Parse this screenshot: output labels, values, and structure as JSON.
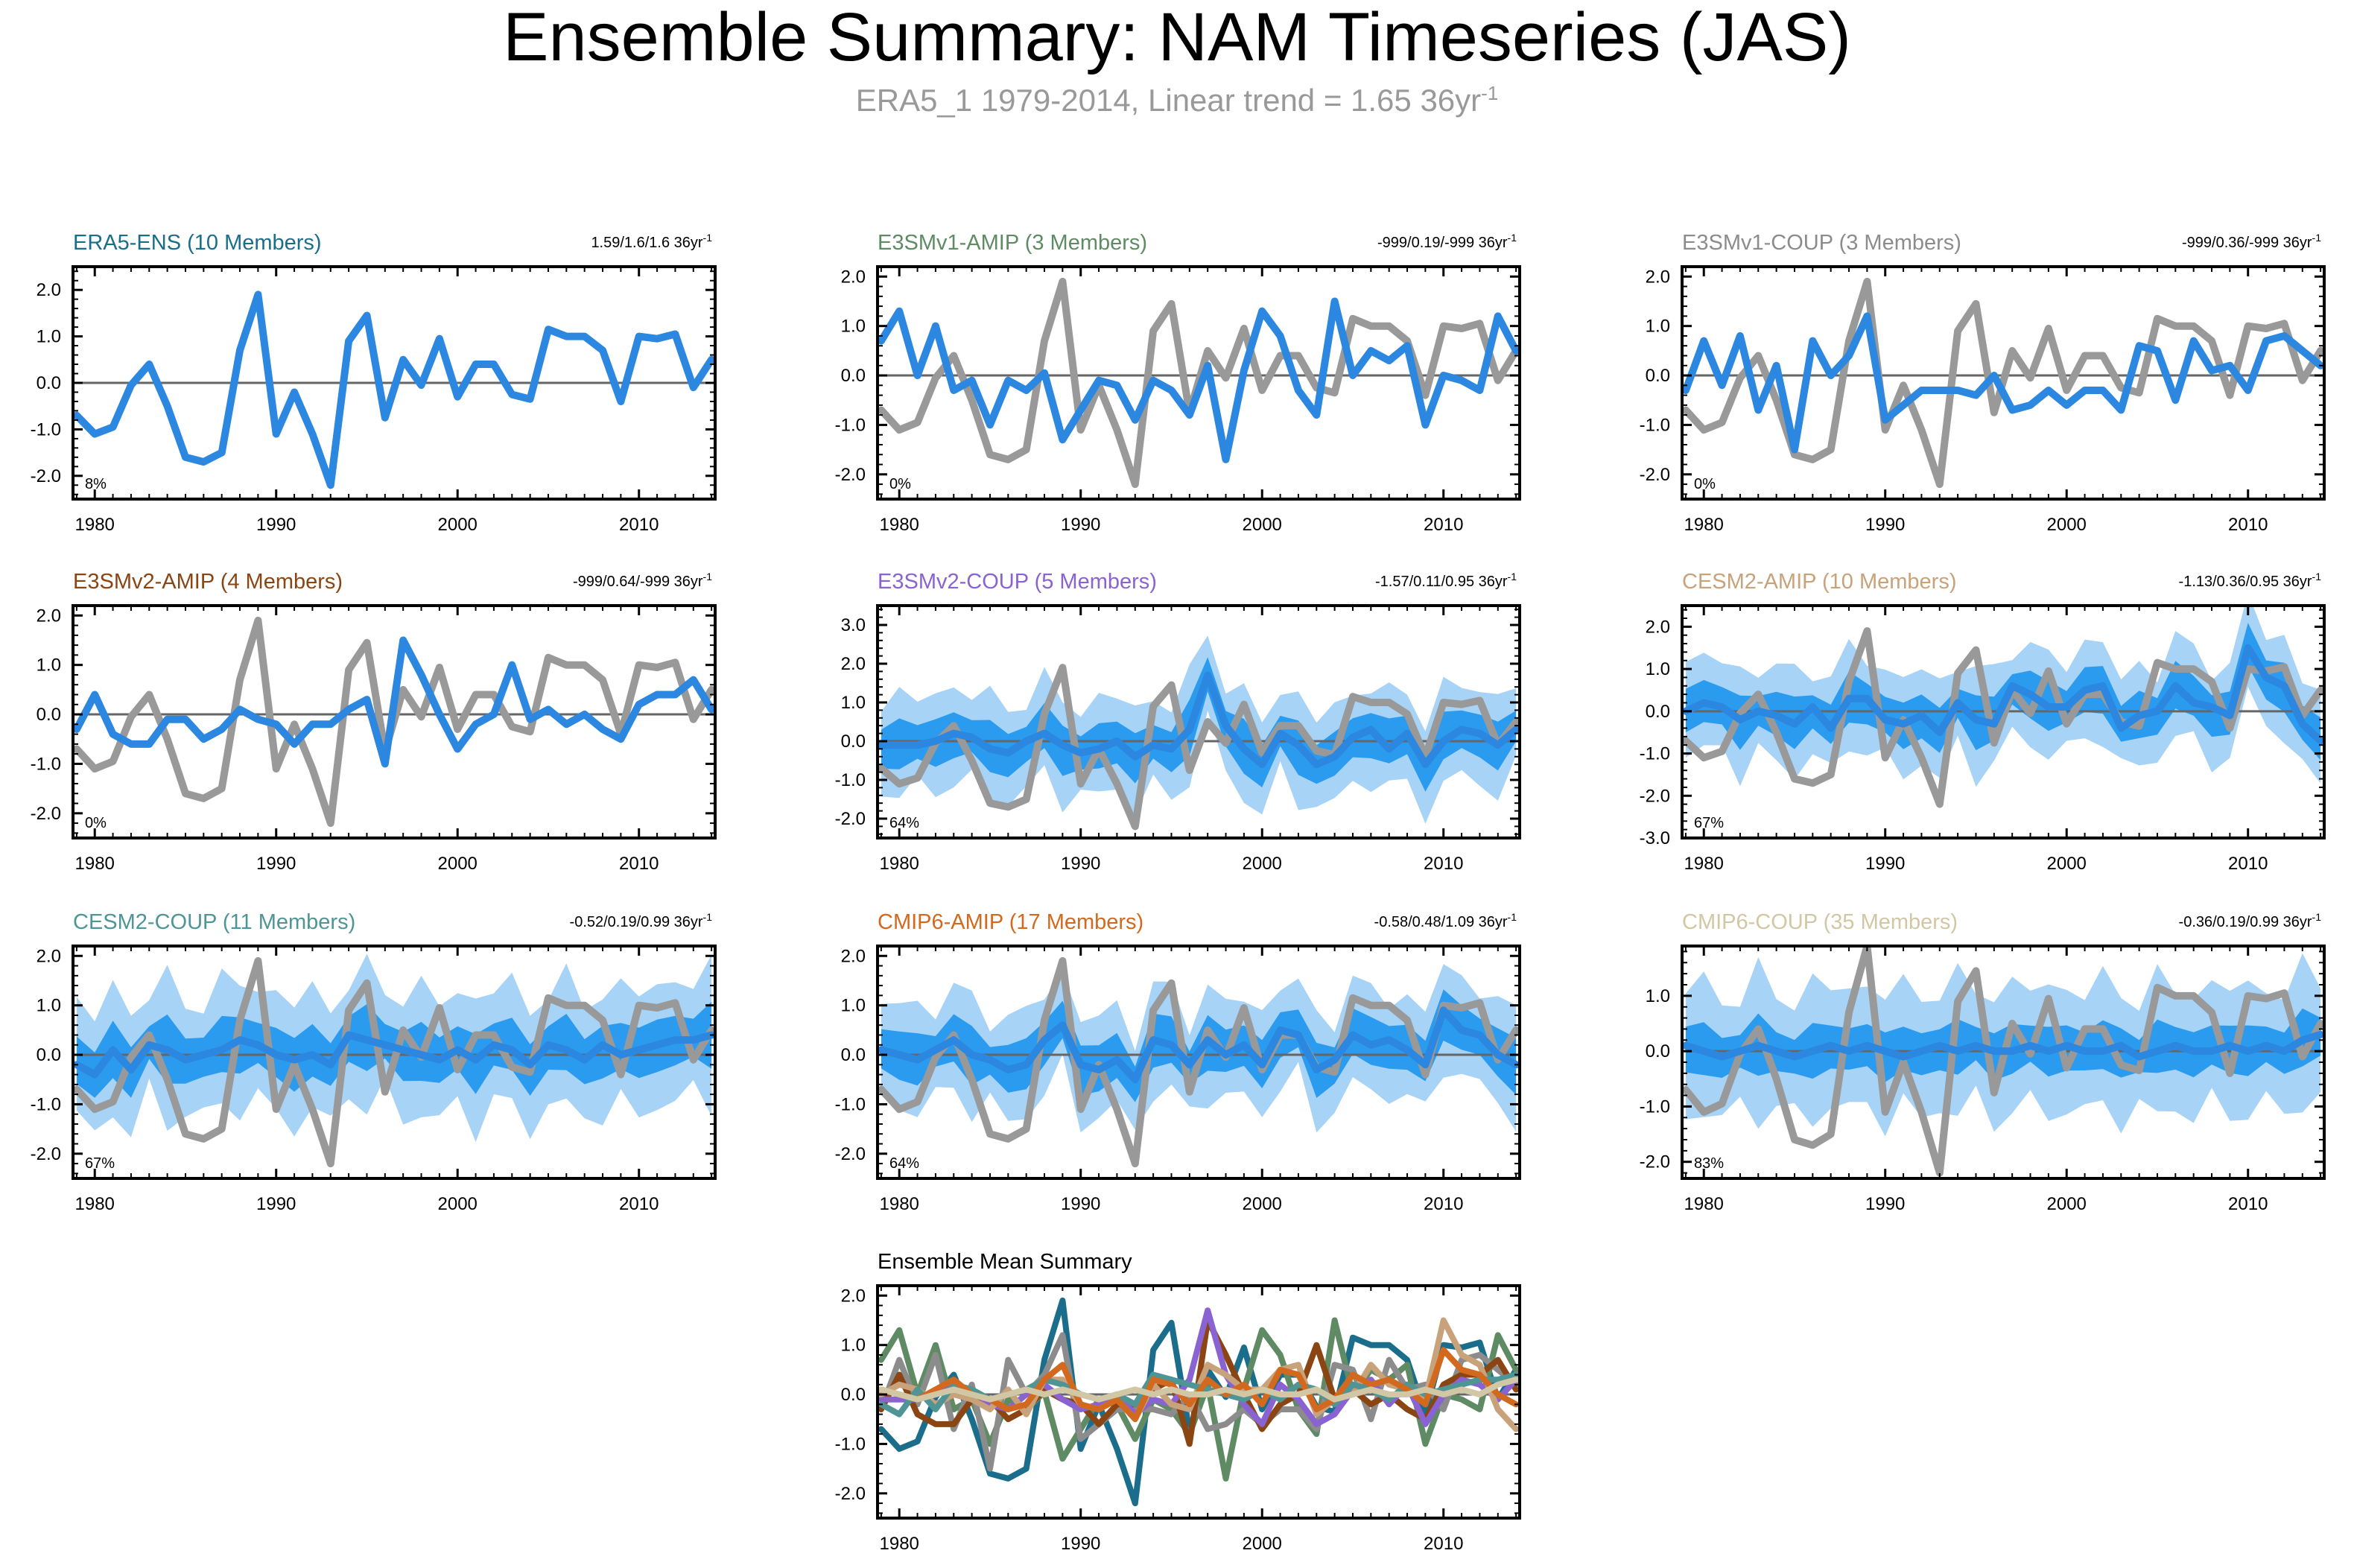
{
  "header": {
    "title": "Ensemble Summary: NAM Timeseries (JAS)",
    "subtitle_main": "ERA5_1 1979-2014, Linear trend = 1.65 36yr",
    "subtitle_sup": "-1"
  },
  "colors": {
    "obs_grey": "#999999",
    "mean_blue": "#2b87e0",
    "band_dark": "#2b9bf0",
    "band_light": "#a7d3f7",
    "zero_line": "#666666"
  },
  "chart_data": {
    "type": "line",
    "x": [
      1979,
      1980,
      1981,
      1982,
      1983,
      1984,
      1985,
      1986,
      1987,
      1988,
      1989,
      1990,
      1991,
      1992,
      1993,
      1994,
      1995,
      1996,
      1997,
      1998,
      1999,
      2000,
      2001,
      2002,
      2003,
      2004,
      2005,
      2006,
      2007,
      2008,
      2009,
      2010,
      2011,
      2012,
      2013,
      2014
    ],
    "xticks": [
      1980,
      1990,
      2000,
      2010
    ],
    "observed": {
      "name": "ERA5_1",
      "values": [
        -0.7,
        -1.1,
        -0.95,
        -0.05,
        0.4,
        -0.5,
        -1.6,
        -1.7,
        -1.5,
        0.7,
        1.9,
        -1.1,
        -0.2,
        -1.1,
        -2.2,
        0.9,
        1.45,
        -0.75,
        0.5,
        -0.05,
        0.95,
        -0.3,
        0.4,
        0.4,
        -0.25,
        -0.35,
        1.15,
        1.0,
        1.0,
        0.7,
        -0.4,
        1.0,
        0.95,
        1.05,
        -0.1,
        0.5
      ]
    },
    "panels": [
      {
        "name": "ERA5-ENS",
        "title": "ERA5-ENS (10 Members)",
        "title_color": "#1a6e8c",
        "trend": "1.59/1.6/1.6 36yr",
        "trend_sup": "-1",
        "percent": "8%",
        "yticks": [
          "2.0",
          "1.0",
          "0.0",
          "-1.0",
          "-2.0"
        ],
        "yrange": [
          -2.5,
          2.5
        ],
        "show_obs": false,
        "bands": false,
        "mean": [
          -0.7,
          -1.1,
          -0.95,
          -0.05,
          0.4,
          -0.5,
          -1.6,
          -1.7,
          -1.5,
          0.7,
          1.9,
          -1.1,
          -0.2,
          -1.1,
          -2.2,
          0.9,
          1.45,
          -0.75,
          0.5,
          -0.05,
          0.95,
          -0.3,
          0.4,
          0.4,
          -0.25,
          -0.35,
          1.15,
          1.0,
          1.0,
          0.7,
          -0.4,
          1.0,
          0.95,
          1.05,
          -0.1,
          0.5
        ]
      },
      {
        "name": "E3SMv1-AMIP",
        "title": "E3SMv1-AMIP (3 Members)",
        "title_color": "#5f8b64",
        "trend": "-999/0.19/-999 36yr",
        "trend_sup": "-1",
        "percent": "0%",
        "yticks": [
          "2.0",
          "1.0",
          "0.0",
          "-1.0",
          "-2.0"
        ],
        "yrange": [
          -2.5,
          2.2
        ],
        "show_obs": true,
        "bands": false,
        "mean": [
          0.7,
          1.3,
          0.0,
          1.0,
          -0.3,
          -0.1,
          -1.0,
          -0.1,
          -0.3,
          0.05,
          -1.3,
          -0.7,
          -0.1,
          -0.2,
          -0.9,
          -0.1,
          -0.3,
          -0.8,
          0.2,
          -1.7,
          0.1,
          1.3,
          0.8,
          -0.3,
          -0.8,
          1.5,
          0.0,
          0.5,
          0.3,
          0.6,
          -1.0,
          0.0,
          -0.1,
          -0.3,
          1.2,
          0.5
        ]
      },
      {
        "name": "E3SMv1-COUP",
        "title": "E3SMv1-COUP (3 Members)",
        "title_color": "#8c8c8c",
        "trend": "-999/0.36/-999 36yr",
        "trend_sup": "-1",
        "percent": "0%",
        "yticks": [
          "2.0",
          "1.0",
          "0.0",
          "-1.0",
          "-2.0"
        ],
        "yrange": [
          -2.5,
          2.2
        ],
        "show_obs": true,
        "bands": false,
        "mean": [
          -0.3,
          0.7,
          -0.2,
          0.8,
          -0.7,
          0.2,
          -1.5,
          0.7,
          0.0,
          0.4,
          1.2,
          -0.9,
          -0.6,
          -0.3,
          -0.3,
          -0.3,
          -0.4,
          0.0,
          -0.7,
          -0.6,
          -0.3,
          -0.6,
          -0.3,
          -0.3,
          -0.7,
          0.6,
          0.5,
          -0.5,
          0.7,
          0.1,
          0.2,
          -0.3,
          0.7,
          0.8,
          0.5,
          0.2
        ]
      },
      {
        "name": "E3SMv2-AMIP",
        "title": "E3SMv2-AMIP (4 Members)",
        "title_color": "#8b4513",
        "trend": "-999/0.64/-999 36yr",
        "trend_sup": "-1",
        "percent": "0%",
        "yticks": [
          "2.0",
          "1.0",
          "0.0",
          "-1.0",
          "-2.0"
        ],
        "yrange": [
          -2.5,
          2.2
        ],
        "show_obs": true,
        "bands": false,
        "mean": [
          -0.3,
          0.4,
          -0.4,
          -0.6,
          -0.6,
          -0.1,
          -0.1,
          -0.5,
          -0.3,
          0.1,
          -0.1,
          -0.2,
          -0.6,
          -0.2,
          -0.2,
          0.1,
          0.3,
          -1.0,
          1.5,
          0.8,
          0.0,
          -0.7,
          -0.2,
          0.0,
          1.0,
          -0.1,
          0.1,
          -0.2,
          0.0,
          -0.3,
          -0.5,
          0.2,
          0.4,
          0.4,
          0.7,
          0.1
        ]
      },
      {
        "name": "E3SMv2-COUP",
        "title": "E3SMv2-COUP (5 Members)",
        "title_color": "#8a63d2",
        "trend": "-1.57/0.11/0.95 36yr",
        "trend_sup": "-1",
        "percent": "64%",
        "yticks": [
          "3.0",
          "2.0",
          "1.0",
          "0.0",
          "-1.0",
          "-2.0"
        ],
        "yrange": [
          -2.5,
          3.5
        ],
        "show_obs": true,
        "bands": true,
        "band_inner": 0.55,
        "band_outer": 1.2,
        "mean": [
          -0.1,
          -0.1,
          -0.1,
          0.0,
          0.2,
          0.1,
          -0.2,
          -0.3,
          0.0,
          0.2,
          -0.1,
          -0.3,
          -0.2,
          0.0,
          -0.4,
          -0.1,
          -0.2,
          0.3,
          1.7,
          0.4,
          -0.2,
          -0.6,
          0.2,
          -0.1,
          -0.6,
          -0.4,
          0.1,
          0.3,
          -0.2,
          0.2,
          -0.6,
          0.0,
          0.3,
          0.2,
          -0.1,
          0.3
        ]
      },
      {
        "name": "CESM2-AMIP",
        "title": "CESM2-AMIP (10 Members)",
        "title_color": "#c8a27a",
        "trend": "-1.13/0.36/0.95 36yr",
        "trend_sup": "-1",
        "percent": "67%",
        "yticks": [
          "2.0",
          "1.0",
          "0.0",
          "-1.0",
          "-2.0",
          "-3.0"
        ],
        "yrange": [
          -3.0,
          2.5
        ],
        "show_obs": true,
        "bands": true,
        "band_inner": 0.5,
        "band_outer": 1.1,
        "mean": [
          0.0,
          0.2,
          0.1,
          -0.2,
          0.0,
          -0.1,
          -0.3,
          0.1,
          -0.4,
          0.3,
          0.3,
          -0.2,
          -0.3,
          -0.1,
          -0.5,
          0.2,
          -0.2,
          -0.3,
          0.6,
          0.4,
          0.1,
          0.1,
          0.5,
          0.6,
          -0.4,
          -0.1,
          0.0,
          0.6,
          0.2,
          0.1,
          -0.1,
          1.5,
          0.8,
          0.6,
          -0.3,
          -0.7
        ]
      },
      {
        "name": "CESM2-COUP",
        "title": "CESM2-COUP (11 Members)",
        "title_color": "#4f9595",
        "trend": "-0.52/0.19/0.99 36yr",
        "trend_sup": "-1",
        "percent": "67%",
        "yticks": [
          "2.0",
          "1.0",
          "0.0",
          "-1.0",
          "-2.0"
        ],
        "yrange": [
          -2.5,
          2.2
        ],
        "show_obs": true,
        "bands": true,
        "band_inner": 0.5,
        "band_outer": 1.2,
        "mean": [
          -0.2,
          -0.4,
          0.1,
          -0.3,
          0.2,
          0.1,
          -0.1,
          0.0,
          0.1,
          0.3,
          0.2,
          0.0,
          -0.1,
          0.0,
          -0.2,
          0.4,
          0.3,
          0.2,
          0.1,
          0.0,
          -0.1,
          0.1,
          -0.1,
          0.2,
          0.1,
          -0.2,
          0.2,
          0.1,
          -0.1,
          0.2,
          0.0,
          0.1,
          0.2,
          0.3,
          0.3,
          0.4
        ]
      },
      {
        "name": "CMIP6-AMIP",
        "title": "CMIP6-AMIP (17 Members)",
        "title_color": "#d2691e",
        "trend": "-0.58/0.48/1.09 36yr",
        "trend_sup": "-1",
        "percent": "64%",
        "yticks": [
          "2.0",
          "1.0",
          "0.0",
          "-1.0",
          "-2.0"
        ],
        "yrange": [
          -2.5,
          2.2
        ],
        "show_obs": true,
        "bands": true,
        "band_inner": 0.45,
        "band_outer": 1.0,
        "mean": [
          0.1,
          0.0,
          -0.1,
          0.1,
          0.3,
          0.0,
          -0.1,
          -0.3,
          -0.2,
          0.3,
          0.6,
          -0.2,
          -0.3,
          -0.1,
          -0.5,
          0.3,
          0.2,
          -0.2,
          0.3,
          0.0,
          0.2,
          -0.2,
          0.5,
          0.4,
          -0.3,
          -0.1,
          0.4,
          0.2,
          0.3,
          0.1,
          -0.2,
          0.9,
          0.5,
          0.4,
          0.0,
          -0.2
        ]
      },
      {
        "name": "CMIP6-COUP",
        "title": "CMIP6-COUP (35 Members)",
        "title_color": "#d2c7a4",
        "trend": "-0.36/0.19/0.99 36yr",
        "trend_sup": "-1",
        "percent": "83%",
        "yticks": [
          "1.0",
          "0.0",
          "-1.0",
          "-2.0"
        ],
        "yrange": [
          -2.3,
          1.9
        ],
        "show_obs": true,
        "bands": true,
        "band_inner": 0.4,
        "band_outer": 1.1,
        "mean": [
          0.1,
          0.0,
          -0.1,
          0.0,
          0.1,
          0.0,
          -0.1,
          0.0,
          0.1,
          0.0,
          0.1,
          0.0,
          -0.1,
          0.0,
          0.1,
          0.0,
          0.1,
          0.0,
          0.0,
          0.1,
          0.0,
          0.1,
          0.0,
          0.0,
          0.1,
          -0.1,
          0.0,
          0.1,
          0.0,
          0.0,
          0.1,
          0.0,
          0.1,
          0.0,
          0.2,
          0.3
        ]
      }
    ],
    "summary": {
      "title": "Ensemble Mean Summary",
      "yticks": [
        "2.0",
        "1.0",
        "0.0",
        "-1.0",
        "-2.0"
      ],
      "yrange": [
        -2.5,
        2.2
      ]
    }
  }
}
